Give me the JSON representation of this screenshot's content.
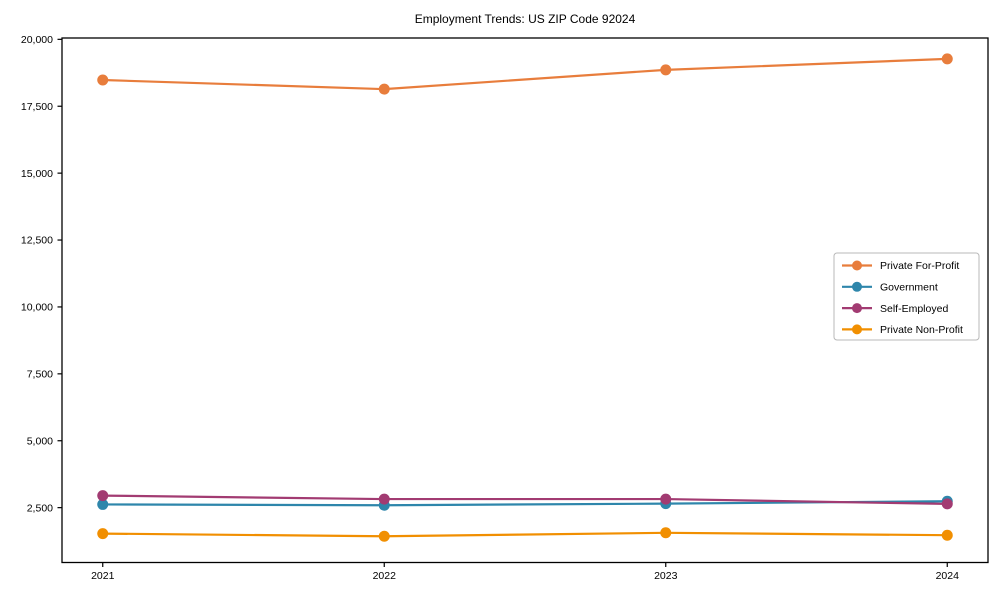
{
  "chart_data": {
    "type": "line",
    "title": "Employment Trends: US ZIP Code 92024",
    "categories": [
      "2021",
      "2022",
      "2023",
      "2024"
    ],
    "series": [
      {
        "name": "Private For-Profit",
        "color": "#E87D3C",
        "values": [
          18480,
          18140,
          18860,
          19270
        ]
      },
      {
        "name": "Government",
        "color": "#2E86AB",
        "values": [
          2620,
          2590,
          2650,
          2740
        ]
      },
      {
        "name": "Self-Employed",
        "color": "#A23B72",
        "values": [
          2950,
          2820,
          2820,
          2640
        ]
      },
      {
        "name": "Private Non-Profit",
        "color": "#F18F01",
        "values": [
          1530,
          1430,
          1560,
          1470
        ]
      }
    ],
    "xlabel": "",
    "ylabel": "",
    "ylim": [
      450,
      20050
    ],
    "yticks": [
      2500,
      5000,
      7500,
      10000,
      12500,
      15000,
      17500,
      20000
    ],
    "ytick_labels": [
      "2,500",
      "5,000",
      "7,500",
      "10,000",
      "12,500",
      "15,000",
      "17,500",
      "20,000"
    ],
    "grid": false,
    "legend_position": "center-right",
    "marker": "circle",
    "axis_color": "#000000",
    "legend_border_color": "#b8b8b8",
    "background": "#ffffff"
  }
}
